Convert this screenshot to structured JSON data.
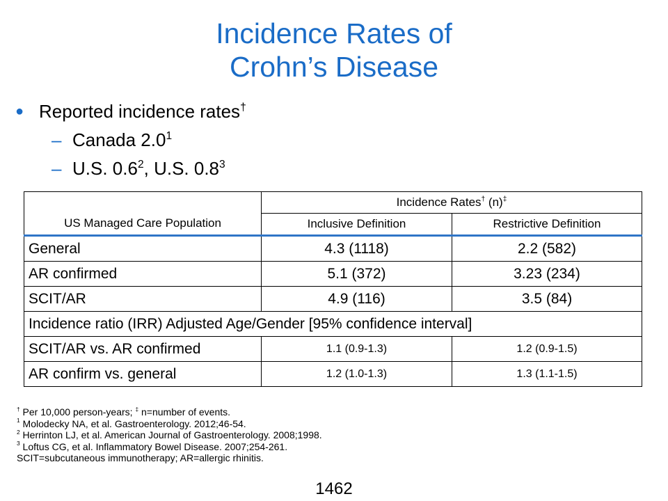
{
  "title": {
    "line1": "Incidence Rates of",
    "line2": "Crohn’s Disease"
  },
  "bullets": {
    "main": {
      "text": "Reported incidence rates",
      "sup": "†"
    },
    "sub1": {
      "text": "Canada 2.0",
      "sup": "1"
    },
    "sub2": {
      "part1": "U.S. 0.6",
      "sup1": "2",
      "part2": ", U.S. 0.8",
      "sup2": "3"
    }
  },
  "table": {
    "corner_label": "US Managed Care Population",
    "group_header": {
      "text": "Incidence Rates",
      "sup1": "†",
      "mid": " (n)",
      "sup2": "‡"
    },
    "col_inclusive": "Inclusive Definition",
    "col_restrictive": "Restrictive Definition",
    "rows": [
      {
        "label": "General",
        "inclusive": "4.3 (1118)",
        "restrictive": "2.2 (582)"
      },
      {
        "label": "AR confirmed",
        "inclusive": "5.1 (372)",
        "restrictive": "3.23 (234)"
      },
      {
        "label": "SCIT/AR",
        "inclusive": "4.9 (116)",
        "restrictive": "3.5 (84)"
      }
    ],
    "ratio_header": "Incidence ratio (IRR) Adjusted Age/Gender [95% confidence interval]",
    "ratio_rows": [
      {
        "label": "SCIT/AR vs. AR confirmed",
        "inclusive": "1.1 (0.9-1.3)",
        "restrictive": "1.2 (0.9-1.5)"
      },
      {
        "label": "AR confirm vs. general",
        "inclusive": "1.2 (1.0-1.3)",
        "restrictive": "1.3 (1.1-1.5)"
      }
    ]
  },
  "footnotes": [
    {
      "sup": "†",
      "text": " Per 10,000 person-years; ",
      "sup2": "‡",
      "text2": " n=number of events."
    },
    {
      "sup": "1",
      "text": " Molodecky NA, et al. Gastroenterology. 2012;46-54."
    },
    {
      "sup": "2",
      "text": " Herrinton LJ, et al. American Journal of Gastroenterology. 2008;1998."
    },
    {
      "sup": "3",
      "text": " Loftus CG, et al. Inflammatory Bowel Disease. 2007;254-261."
    },
    {
      "text": "SCIT=subcutaneous immunotherapy; AR=allergic rhinitis."
    }
  ],
  "page_number": "1462"
}
